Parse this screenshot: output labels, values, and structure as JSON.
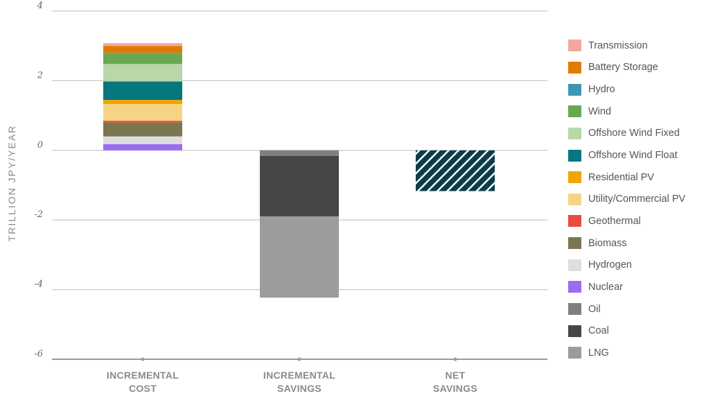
{
  "chart_data": {
    "type": "bar",
    "stacked": true,
    "ylabel": "TRILLION JPY/YEAR",
    "ylim": [
      -6,
      4
    ],
    "yticks": [
      4,
      2,
      0,
      -2,
      -4,
      -6
    ],
    "grid": true,
    "legend_position": "right",
    "categories": [
      {
        "line1": "INCREMENTAL",
        "line2": "COST"
      },
      {
        "line1": "INCREMENTAL",
        "line2": "SAVINGS"
      },
      {
        "line1": "NET",
        "line2": "SAVINGS"
      }
    ],
    "legend": [
      {
        "name": "Transmission",
        "color": "#f4a7a0"
      },
      {
        "name": "Battery Storage",
        "color": "#e07b00"
      },
      {
        "name": "Hydro",
        "color": "#3f96b4"
      },
      {
        "name": "Wind",
        "color": "#6aa84f"
      },
      {
        "name": "Offshore Wind Fixed",
        "color": "#b9d7a8"
      },
      {
        "name": "Offshore Wind Float",
        "color": "#06767f"
      },
      {
        "name": "Residential PV",
        "color": "#f0a500"
      },
      {
        "name": "Utility/Commercial PV",
        "color": "#f6d485"
      },
      {
        "name": "Geothermal",
        "color": "#e74c3c"
      },
      {
        "name": "Biomass",
        "color": "#7a7650"
      },
      {
        "name": "Hydrogen",
        "color": "#dedede"
      },
      {
        "name": "Nuclear",
        "color": "#9b6bf2"
      },
      {
        "name": "Oil",
        "color": "#7f7f7f"
      },
      {
        "name": "Coal",
        "color": "#464646"
      },
      {
        "name": "LNG",
        "color": "#9c9c9c"
      }
    ],
    "series": [
      {
        "category": 0,
        "stack": [
          {
            "name": "Nuclear",
            "value": 0.18
          },
          {
            "name": "Hydrogen",
            "value": 0.22
          },
          {
            "name": "Biomass",
            "value": 0.4
          },
          {
            "name": "Geothermal",
            "value": 0.05
          },
          {
            "name": "Utility/Commercial PV",
            "value": 0.48
          },
          {
            "name": "Residential PV",
            "value": 0.12
          },
          {
            "name": "Offshore Wind Float",
            "value": 0.53
          },
          {
            "name": "Offshore Wind Fixed",
            "value": 0.5
          },
          {
            "name": "Wind",
            "value": 0.3
          },
          {
            "name": "Hydro",
            "value": 0.02
          },
          {
            "name": "Battery Storage",
            "value": 0.2
          },
          {
            "name": "Transmission",
            "value": 0.08
          }
        ]
      },
      {
        "category": 1,
        "stack": [
          {
            "name": "Oil",
            "value": -0.16
          },
          {
            "name": "Coal",
            "value": -1.74
          },
          {
            "name": "LNG",
            "value": -2.33
          }
        ]
      },
      {
        "category": 2,
        "stack": [
          {
            "name": "Net Savings",
            "value": -1.17,
            "pattern": "hatch"
          }
        ]
      }
    ]
  }
}
